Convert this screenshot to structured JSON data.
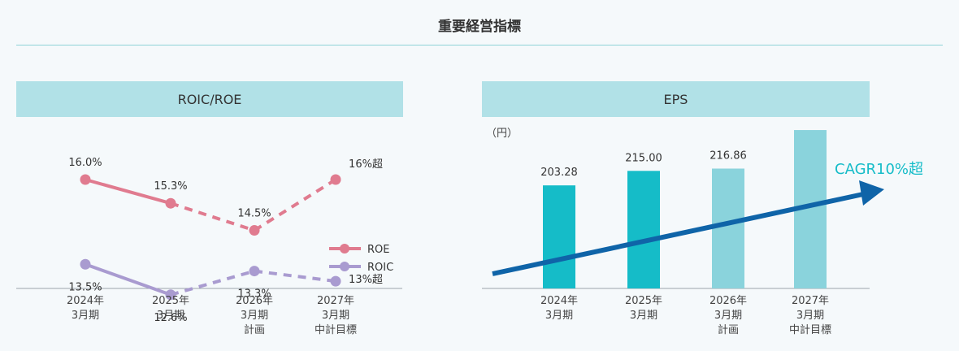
{
  "page": {
    "title": "重要経営指標"
  },
  "colors": {
    "roe": "#e07b8f",
    "roic": "#a99bd0",
    "bar_actual": "#15bcc8",
    "bar_target": "#8ad3dc",
    "arrow": "#0f64a8",
    "cagr_text": "#15bcc8",
    "header_bg": "#b1e1e7"
  },
  "chart_data": [
    {
      "type": "line",
      "title": "ROIC/ROE",
      "categories": [
        [
          "2024年",
          "3月期"
        ],
        [
          "2025年",
          "3月期"
        ],
        [
          "2026年",
          "3月期",
          "計画"
        ],
        [
          "2027年",
          "3月期",
          "中計目標"
        ]
      ],
      "series": [
        {
          "name": "ROE",
          "values": [
            16.0,
            15.3,
            14.5,
            16.0
          ],
          "labels": [
            "16.0%",
            "15.3%",
            "14.5%",
            "16%超"
          ],
          "line_style": [
            "solid",
            "dashed",
            "dashed"
          ]
        },
        {
          "name": "ROIC",
          "values": [
            13.5,
            12.6,
            13.3,
            13.0
          ],
          "labels": [
            "13.5%",
            "12.6%",
            "13.3%",
            "13%超"
          ],
          "line_style": [
            "solid",
            "dashed",
            "dashed"
          ]
        }
      ],
      "legend": "bottom-right",
      "grid": false
    },
    {
      "type": "bar",
      "title": "EPS",
      "unit": "（円）",
      "categories": [
        [
          "2024年",
          "3月期"
        ],
        [
          "2025年",
          "3月期"
        ],
        [
          "2026年",
          "3月期",
          "計画"
        ],
        [
          "2027年",
          "3月期",
          "中計目標"
        ]
      ],
      "values": [
        203.28,
        215.0,
        216.86,
        248.0
      ],
      "labels": [
        "203.28",
        "215.00",
        "216.86",
        ""
      ],
      "annotation": "CAGR10%超",
      "grid": false
    }
  ]
}
